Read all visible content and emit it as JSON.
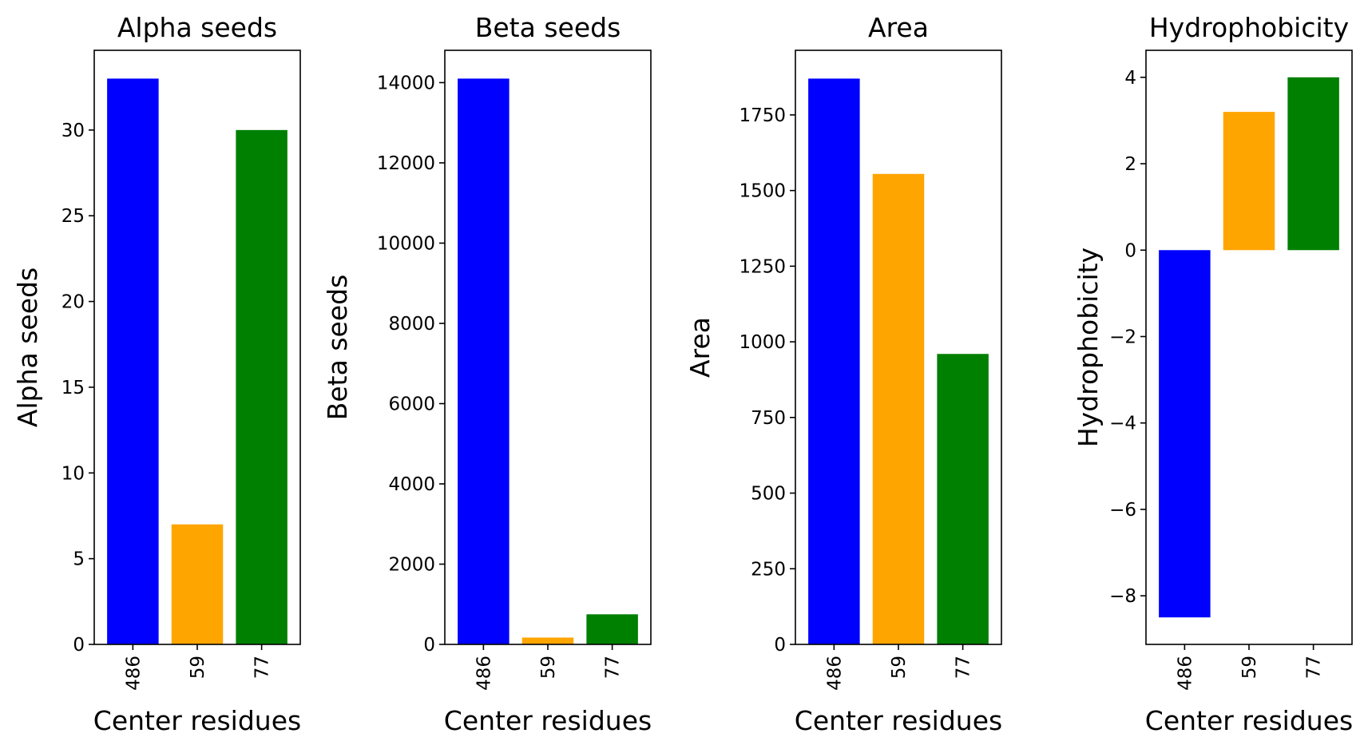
{
  "chart_data": [
    {
      "type": "bar",
      "title": "Alpha seeds",
      "xlabel": "Center residues",
      "ylabel": "Alpha seeds",
      "categories": [
        "486",
        "59",
        "77"
      ],
      "values": [
        33,
        7,
        30
      ],
      "colors": [
        "#0000ff",
        "#ffa500",
        "#008000"
      ],
      "ylim": [
        0,
        34.65
      ],
      "yticks": [
        0,
        5,
        10,
        15,
        20,
        25,
        30
      ],
      "ytick_labels": [
        "0",
        "5",
        "10",
        "15",
        "20",
        "25",
        "30"
      ],
      "grid": false
    },
    {
      "type": "bar",
      "title": "Beta seeds",
      "xlabel": "Center residues",
      "ylabel": "Beta seeds",
      "categories": [
        "486",
        "59",
        "77"
      ],
      "values": [
        14100,
        170,
        750
      ],
      "colors": [
        "#0000ff",
        "#ffa500",
        "#008000"
      ],
      "ylim": [
        0,
        14805
      ],
      "yticks": [
        0,
        2000,
        4000,
        6000,
        8000,
        10000,
        12000,
        14000
      ],
      "ytick_labels": [
        "0",
        "2000",
        "4000",
        "6000",
        "8000",
        "10000",
        "12000",
        "14000"
      ],
      "grid": false
    },
    {
      "type": "bar",
      "title": "Area",
      "xlabel": "Center residues",
      "ylabel": "Area",
      "categories": [
        "486",
        "59",
        "77"
      ],
      "values": [
        1870,
        1555,
        960
      ],
      "colors": [
        "#0000ff",
        "#ffa500",
        "#008000"
      ],
      "ylim": [
        0,
        1963.5
      ],
      "yticks": [
        0,
        250,
        500,
        750,
        1000,
        1250,
        1500,
        1750
      ],
      "ytick_labels": [
        "0",
        "250",
        "500",
        "750",
        "1000",
        "1250",
        "1500",
        "1750"
      ],
      "grid": false
    },
    {
      "type": "bar",
      "title": "Hydrophobicity",
      "xlabel": "Center residues",
      "ylabel": "Hydrophobicity",
      "categories": [
        "486",
        "59",
        "77"
      ],
      "values": [
        -8.5,
        3.2,
        4.0
      ],
      "colors": [
        "#0000ff",
        "#ffa500",
        "#008000"
      ],
      "ylim": [
        -9.125,
        4.625
      ],
      "yticks": [
        -8,
        -6,
        -4,
        -2,
        0,
        2,
        4
      ],
      "ytick_labels": [
        "−8",
        "−6",
        "−4",
        "−2",
        "0",
        "2",
        "4"
      ],
      "grid": false
    }
  ]
}
